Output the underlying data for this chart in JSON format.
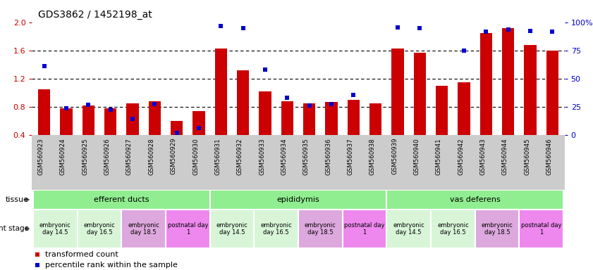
{
  "title": "GDS3862 / 1452198_at",
  "samples": [
    "GSM560923",
    "GSM560924",
    "GSM560925",
    "GSM560926",
    "GSM560927",
    "GSM560928",
    "GSM560929",
    "GSM560930",
    "GSM560931",
    "GSM560932",
    "GSM560933",
    "GSM560934",
    "GSM560935",
    "GSM560936",
    "GSM560937",
    "GSM560938",
    "GSM560939",
    "GSM560940",
    "GSM560941",
    "GSM560942",
    "GSM560943",
    "GSM560944",
    "GSM560945",
    "GSM560946"
  ],
  "red_values": [
    1.05,
    0.78,
    0.82,
    0.78,
    0.85,
    0.88,
    0.6,
    0.74,
    1.63,
    1.32,
    1.02,
    0.88,
    0.85,
    0.87,
    0.9,
    0.85,
    1.63,
    1.57,
    1.1,
    1.15,
    1.85,
    1.92,
    1.68,
    1.6
  ],
  "blue_values": [
    1.38,
    0.78,
    0.83,
    0.76,
    0.63,
    0.84,
    0.43,
    0.5,
    1.95,
    1.92,
    1.33,
    0.93,
    0.82,
    0.84,
    0.97,
    null,
    1.93,
    1.92,
    null,
    1.6,
    1.87,
    1.9,
    1.88,
    1.87
  ],
  "tissue_groups": [
    {
      "label": "efferent ducts",
      "start": 0,
      "end": 7,
      "color": "#90ee90"
    },
    {
      "label": "epididymis",
      "start": 8,
      "end": 15,
      "color": "#90ee90"
    },
    {
      "label": "vas deferens",
      "start": 16,
      "end": 23,
      "color": "#90ee90"
    }
  ],
  "stage_groups": [
    {
      "label": "embryonic\nday 14.5",
      "start": 0,
      "end": 1,
      "color": "#d8f5d8"
    },
    {
      "label": "embryonic\nday 16.5",
      "start": 2,
      "end": 3,
      "color": "#d8f5d8"
    },
    {
      "label": "embryonic\nday 18.5",
      "start": 4,
      "end": 5,
      "color": "#dda8dd"
    },
    {
      "label": "postnatal day\n1",
      "start": 6,
      "end": 7,
      "color": "#ee88ee"
    },
    {
      "label": "embryonic\nday 14.5",
      "start": 8,
      "end": 9,
      "color": "#d8f5d8"
    },
    {
      "label": "embryonic\nday 16.5",
      "start": 10,
      "end": 11,
      "color": "#d8f5d8"
    },
    {
      "label": "embryonic\nday 18.5",
      "start": 12,
      "end": 13,
      "color": "#dda8dd"
    },
    {
      "label": "postnatal day\n1",
      "start": 14,
      "end": 15,
      "color": "#ee88ee"
    },
    {
      "label": "embryonic\nday 14.5",
      "start": 16,
      "end": 17,
      "color": "#d8f5d8"
    },
    {
      "label": "embryonic\nday 16.5",
      "start": 18,
      "end": 19,
      "color": "#d8f5d8"
    },
    {
      "label": "embryonic\nday 18.5",
      "start": 20,
      "end": 21,
      "color": "#dda8dd"
    },
    {
      "label": "postnatal day\n1",
      "start": 22,
      "end": 23,
      "color": "#ee88ee"
    }
  ],
  "ylim_left": [
    0.4,
    2.0
  ],
  "ylim_right": [
    0,
    100
  ],
  "yticks_left": [
    0.4,
    0.8,
    1.2,
    1.6,
    2.0
  ],
  "yticks_right": [
    0,
    25,
    50,
    75,
    100
  ],
  "hlines": [
    0.8,
    1.2,
    1.6
  ],
  "bar_color": "#cc0000",
  "dot_color": "#0000cc",
  "bg_color": "#ffffff",
  "xtick_bg": "#cccccc"
}
